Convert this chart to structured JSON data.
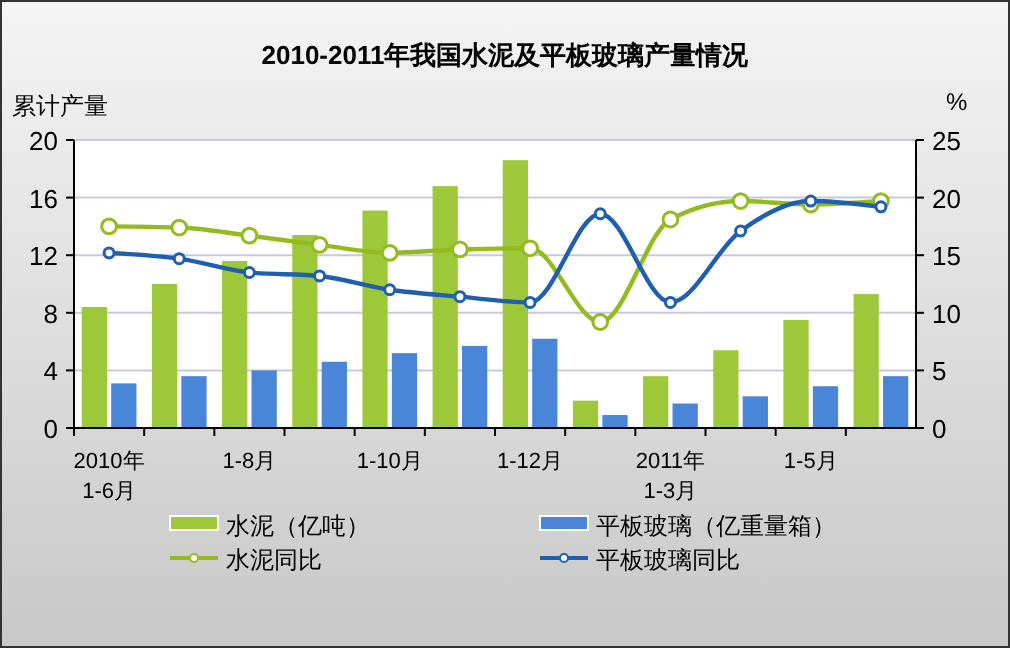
{
  "chart_data": {
    "type": "bar",
    "title": "2010-2011年我国水泥及平板玻璃产量情况",
    "ylabel": "累计产量",
    "y2label": "%",
    "categories": [
      "2010年\n1-6月",
      null,
      "1-8月",
      null,
      "1-10月",
      null,
      "1-12月",
      null,
      "2011年\n1-3月",
      null,
      "1-5月",
      null
    ],
    "series": [
      {
        "name": "水泥（亿吨）",
        "color": "#9cc83a",
        "values": [
          8.4,
          10.0,
          11.6,
          13.4,
          15.1,
          16.8,
          18.6,
          1.9,
          3.6,
          5.4,
          7.5,
          9.3
        ]
      },
      {
        "name": "平板玻璃（亿重量箱）",
        "color": "#4a86d8",
        "values": [
          3.1,
          3.6,
          4.0,
          4.6,
          5.2,
          5.7,
          6.2,
          0.9,
          1.7,
          2.2,
          2.9,
          3.6
        ]
      },
      {
        "name": "水泥同比",
        "type": "line",
        "axis": "y2",
        "color": "#94bb1e",
        "values": [
          17.5,
          17.4,
          16.7,
          15.9,
          15.2,
          15.5,
          15.6,
          9.2,
          18.1,
          19.7,
          19.4,
          19.7
        ]
      },
      {
        "name": "平板玻璃同比",
        "type": "line",
        "axis": "y2",
        "color": "#1f5fb0",
        "values": [
          15.2,
          14.7,
          13.5,
          13.2,
          12.0,
          11.4,
          10.9,
          18.6,
          10.9,
          17.1,
          19.7,
          19.2
        ]
      }
    ],
    "ylim": [
      0,
      20
    ],
    "yticks": [
      0,
      4,
      8,
      12,
      16,
      20
    ],
    "y2lim": [
      0,
      25
    ],
    "y2ticks": [
      0,
      5,
      10,
      15,
      20,
      25
    ],
    "grid": "y",
    "legend": "bottom",
    "marker": "circle",
    "line_style": "solid"
  }
}
